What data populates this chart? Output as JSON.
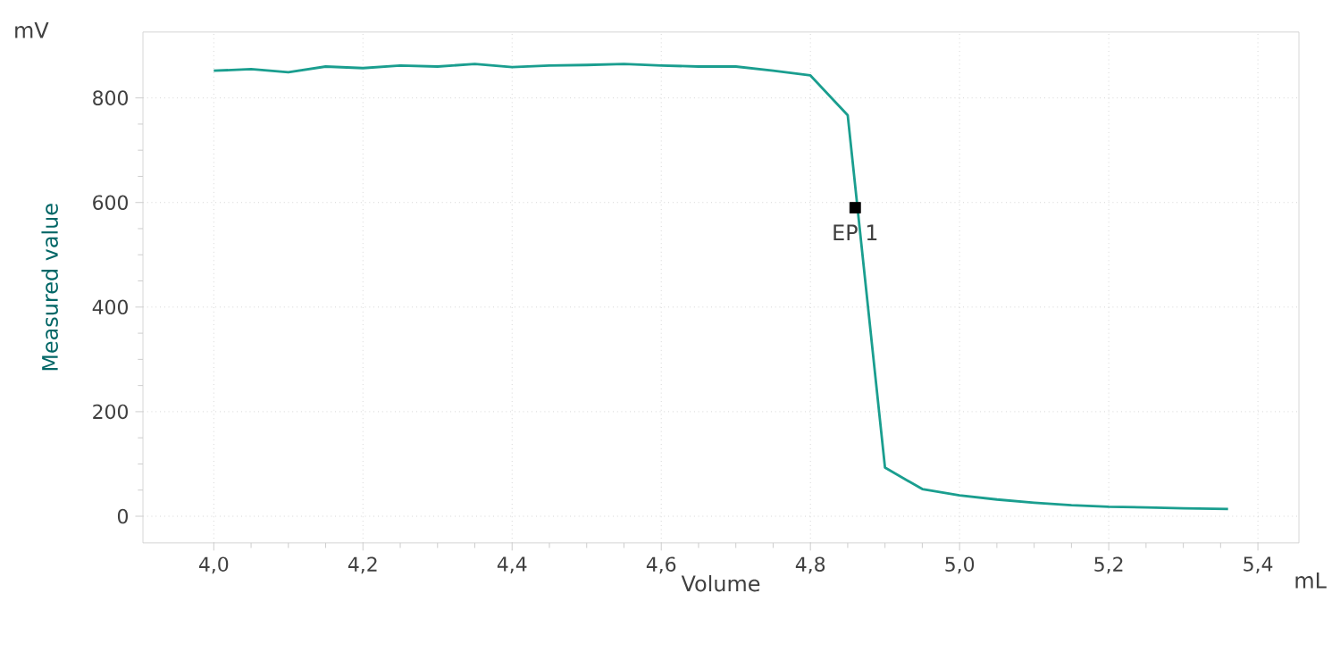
{
  "chart_data": {
    "type": "line",
    "xlabel": "Volume",
    "ylabel": "Measured value",
    "xlim": [
      3.905,
      5.455
    ],
    "ylim": [
      -51,
      926
    ],
    "xticks": [
      {
        "value": 4.0,
        "label": "4,0"
      },
      {
        "value": 4.2,
        "label": "4,2"
      },
      {
        "value": 4.4,
        "label": "4,4"
      },
      {
        "value": 4.6,
        "label": "4,6"
      },
      {
        "value": 4.8,
        "label": "4,8"
      },
      {
        "value": 5.0,
        "label": "5,0"
      },
      {
        "value": 5.2,
        "label": "5,2"
      },
      {
        "value": 5.4,
        "label": "5,4"
      }
    ],
    "yticks": [
      0,
      200,
      400,
      600,
      800
    ],
    "grid": true,
    "series": [
      {
        "color": "#1a9e8f",
        "marker": "none",
        "x": [
          4.0,
          4.05,
          4.1,
          4.15,
          4.2,
          4.25,
          4.3,
          4.35,
          4.4,
          4.45,
          4.5,
          4.55,
          4.6,
          4.65,
          4.7,
          4.75,
          4.8,
          4.85,
          4.9,
          4.95,
          5.0,
          5.05,
          5.1,
          5.15,
          5.2,
          5.25,
          5.3,
          5.36
        ],
        "values": [
          852,
          855,
          849,
          860,
          857,
          862,
          860,
          865,
          859,
          862,
          863,
          865,
          862,
          860,
          860,
          852,
          843,
          767,
          93,
          52,
          40,
          32,
          26,
          21,
          18,
          17,
          15,
          14
        ]
      },
      {
        "type": "scatter",
        "color": "#000000",
        "marker": "square",
        "x": [
          4.86
        ],
        "values": [
          590
        ]
      }
    ],
    "annotations": [
      "mV",
      "mL",
      {
        "text": "EP 1",
        "x": 4.86,
        "y": 590
      }
    ]
  }
}
